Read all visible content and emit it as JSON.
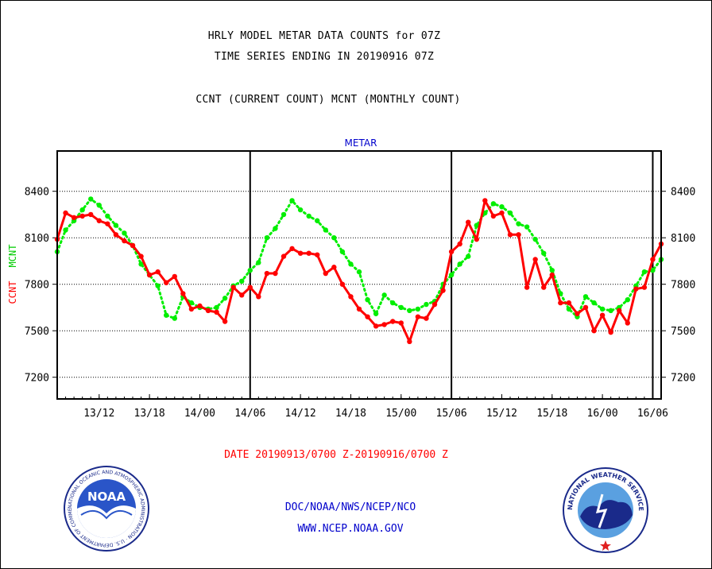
{
  "header": {
    "title_line1": "HRLY MODEL METAR DATA COUNTS for 07Z",
    "title_line2": "TIME SERIES ENDING IN 20190916 07Z",
    "subtitle": "CCNT (CURRENT COUNT) MCNT (MONTHLY COUNT)"
  },
  "footer": {
    "date_range": "DATE 20190913/0700 Z-20190916/0700 Z",
    "org": "DOC/NOAA/NWS/NCEP/NCO",
    "url": "WWW.NCEP.NOAA.GOV"
  },
  "logos": {
    "noaa": "NOAA",
    "noaa_ring": "NATIONAL OCEANIC AND ATMOSPHERIC ADMINISTRATION · U.S. DEPARTMENT OF COMMERCE",
    "nws_ring": "NATIONAL WEATHER SERVICE"
  },
  "colors": {
    "ccnt": "#ff0000",
    "mcnt": "#00ee00",
    "panel_title": "#0000cc",
    "text": "#000000"
  },
  "chart_data": {
    "type": "line",
    "title": "METAR",
    "ylabel_left_1": "CCNT",
    "ylabel_left_2": "MCNT",
    "ylim": [
      7060,
      8660
    ],
    "yticks": [
      7200,
      7500,
      7800,
      8100,
      8400
    ],
    "x_range_hours": [
      0,
      72
    ],
    "xticks": [
      {
        "hour": 5,
        "label": "13/12"
      },
      {
        "hour": 11,
        "label": "13/18"
      },
      {
        "hour": 17,
        "label": "14/00"
      },
      {
        "hour": 23,
        "label": "14/06"
      },
      {
        "hour": 29,
        "label": "14/12"
      },
      {
        "hour": 35,
        "label": "14/18"
      },
      {
        "hour": 41,
        "label": "15/00"
      },
      {
        "hour": 47,
        "label": "15/06"
      },
      {
        "hour": 53,
        "label": "15/12"
      },
      {
        "hour": 59,
        "label": "15/18"
      },
      {
        "hour": 65,
        "label": "16/00"
      },
      {
        "hour": 71,
        "label": "16/06"
      }
    ],
    "day_separators_hours": [
      23,
      47,
      71
    ],
    "grid": true,
    "series": [
      {
        "name": "CCNT",
        "color": "#ff0000",
        "style": "solid",
        "values": [
          8090,
          8260,
          8230,
          8240,
          8250,
          8210,
          8190,
          8120,
          8080,
          8050,
          7980,
          7860,
          7880,
          7810,
          7850,
          7740,
          7640,
          7660,
          7630,
          7620,
          7560,
          7780,
          7730,
          7780,
          7720,
          7870,
          7870,
          7980,
          8030,
          8000,
          8000,
          7990,
          7870,
          7910,
          7800,
          7720,
          7640,
          7590,
          7530,
          7540,
          7560,
          7550,
          7430,
          7590,
          7580,
          7670,
          7760,
          8010,
          8060,
          8200,
          8090,
          8340,
          8240,
          8260,
          8120,
          8120,
          7780,
          7960,
          7780,
          7860,
          7680,
          7680,
          7610,
          7650,
          7500,
          7600,
          7490,
          7630,
          7550,
          7770,
          7780,
          7960,
          8060
        ]
      },
      {
        "name": "MCNT",
        "color": "#00ee00",
        "style": "dotted",
        "values": [
          8010,
          8150,
          8210,
          8280,
          8350,
          8310,
          8240,
          8180,
          8130,
          8050,
          7930,
          7860,
          7790,
          7600,
          7580,
          7720,
          7680,
          7650,
          7640,
          7650,
          7710,
          7790,
          7820,
          7890,
          7940,
          8100,
          8160,
          8250,
          8340,
          8280,
          8240,
          8210,
          8150,
          8100,
          8010,
          7930,
          7880,
          7700,
          7610,
          7730,
          7680,
          7650,
          7630,
          7640,
          7670,
          7690,
          7800,
          7860,
          7930,
          7980,
          8180,
          8260,
          8320,
          8300,
          8260,
          8190,
          8170,
          8090,
          8000,
          7890,
          7740,
          7640,
          7590,
          7720,
          7680,
          7640,
          7630,
          7650,
          7700,
          7790,
          7880,
          7890,
          7960
        ]
      }
    ]
  }
}
